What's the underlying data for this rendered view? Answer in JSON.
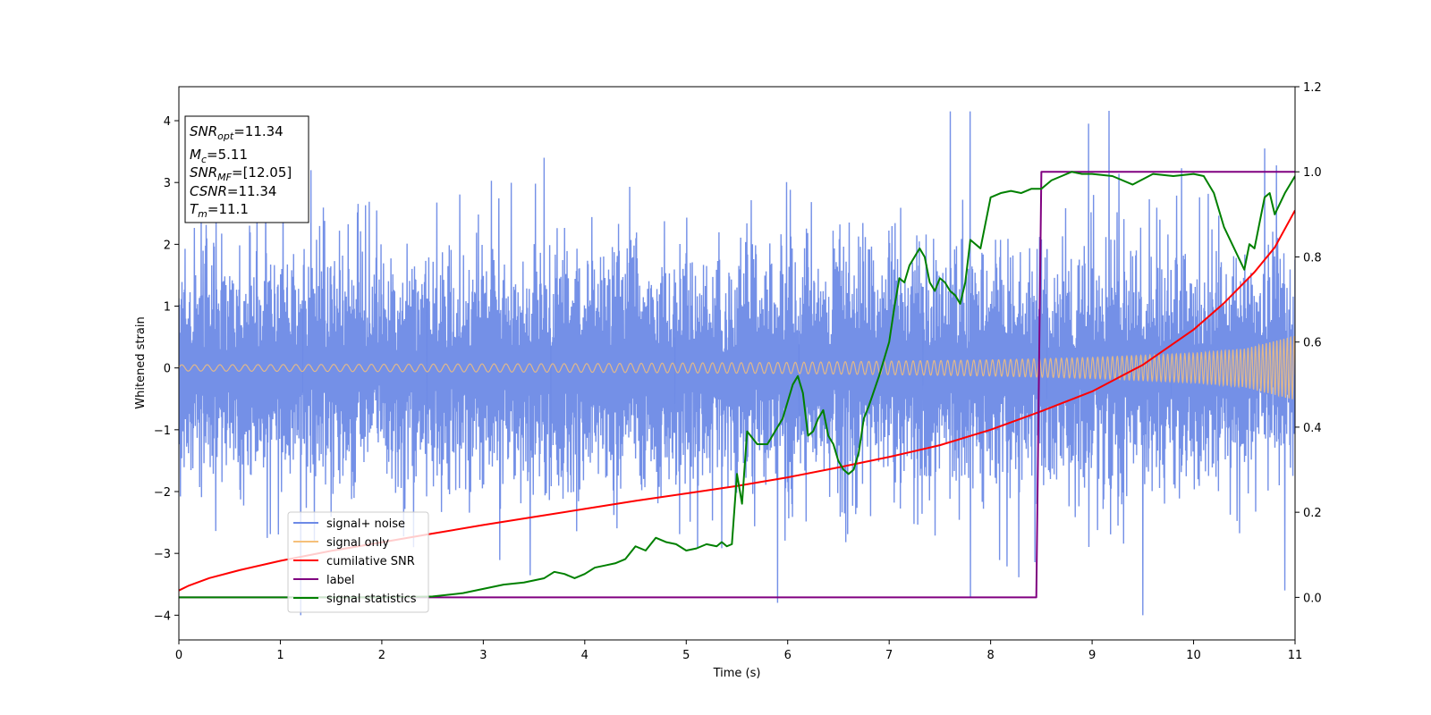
{
  "chart_data": {
    "type": "line",
    "xlabel": "Time (s)",
    "ylabel": "Whitened strain",
    "xlim": [
      0,
      11
    ],
    "ylim": [
      -4.4,
      4.55
    ],
    "y2lim": [
      -0.1,
      1.2
    ],
    "x_ticks": [
      "0",
      "1",
      "2",
      "3",
      "4",
      "5",
      "6",
      "7",
      "8",
      "9",
      "10",
      "11"
    ],
    "y_ticks": [
      "4",
      "3",
      "2",
      "1",
      "0",
      "−1",
      "−2",
      "−3",
      "−4"
    ],
    "y2_ticks": [
      "1.2",
      "1.0",
      "0.8",
      "0.6",
      "0.4",
      "0.2",
      "0.0"
    ],
    "annotation": {
      "lines": [
        {
          "base": "SNR",
          "sub": "opt",
          "value": "=11.34"
        },
        {
          "base": "M",
          "sub": "c",
          "value": "=5.11"
        },
        {
          "base": "SNR",
          "sub": "MF",
          "value": "=[12.05]"
        },
        {
          "base": "CSNR",
          "sub": "",
          "value": "=11.34"
        },
        {
          "base": "T",
          "sub": "m",
          "value": "=11.1"
        }
      ]
    },
    "legend": {
      "placement": "lower-left",
      "entries": [
        {
          "label": "signal+ noise",
          "color": "#6d8ae6"
        },
        {
          "label": "signal only",
          "color": "#f5c07a"
        },
        {
          "label": "cumilative SNR",
          "color": "#ff0000"
        },
        {
          "label": "label",
          "color": "#800080"
        },
        {
          "label": "signal statistics",
          "color": "#008000"
        }
      ]
    },
    "series": [
      {
        "name": "signal+ noise",
        "axis": "left",
        "color": "#6d8ae6",
        "description": "noisy whitened strain, approx. Gaussian noise sd ~1 across 0-11 s",
        "noise_sd": 1.0,
        "peak_max": [
          [
            7.6,
            4.15
          ],
          [
            7.8,
            4.15
          ],
          [
            10.7,
            3.55
          ],
          [
            1.3,
            3.2
          ],
          [
            3.6,
            3.4
          ]
        ],
        "peak_min": [
          [
            1.2,
            -4.0
          ],
          [
            5.9,
            -3.8
          ],
          [
            9.5,
            -4.0
          ],
          [
            7.8,
            -3.7
          ],
          [
            10.9,
            -3.6
          ]
        ]
      },
      {
        "name": "signal only",
        "axis": "left",
        "color": "#f5c07a",
        "envelope": [
          [
            0,
            0.05
          ],
          [
            2,
            0.06
          ],
          [
            4,
            0.07
          ],
          [
            6,
            0.09
          ],
          [
            8,
            0.13
          ],
          [
            9,
            0.17
          ],
          [
            10,
            0.24
          ],
          [
            10.5,
            0.31
          ],
          [
            11,
            0.52
          ]
        ]
      },
      {
        "name": "cumilative SNR",
        "axis": "left",
        "color": "#ff0000",
        "x": [
          0,
          0.1,
          0.3,
          0.6,
          1,
          1.5,
          2,
          2.5,
          3,
          3.5,
          4,
          4.5,
          5,
          5.5,
          6,
          6.5,
          7,
          7.5,
          8,
          8.5,
          9,
          9.5,
          10,
          10.3,
          10.6,
          10.8,
          11
        ],
        "y": [
          -3.6,
          -3.52,
          -3.4,
          -3.27,
          -3.12,
          -2.96,
          -2.82,
          -2.68,
          -2.54,
          -2.41,
          -2.28,
          -2.15,
          -2.03,
          -1.91,
          -1.77,
          -1.61,
          -1.44,
          -1.25,
          -1.0,
          -0.7,
          -0.38,
          0.05,
          0.62,
          1.05,
          1.55,
          1.95,
          2.55
        ]
      },
      {
        "name": "label",
        "axis": "right",
        "color": "#800080",
        "x": [
          0,
          8.45,
          8.5,
          11
        ],
        "y": [
          0.0,
          0.0,
          1.0,
          1.0
        ]
      },
      {
        "name": "signal statistics",
        "axis": "right",
        "color": "#008000",
        "x": [
          0,
          0.5,
          1,
          1.5,
          2,
          2.5,
          2.8,
          3.0,
          3.2,
          3.4,
          3.5,
          3.6,
          3.7,
          3.8,
          3.9,
          4.0,
          4.1,
          4.2,
          4.3,
          4.4,
          4.5,
          4.6,
          4.7,
          4.8,
          4.9,
          5.0,
          5.1,
          5.2,
          5.3,
          5.35,
          5.4,
          5.45,
          5.5,
          5.55,
          5.6,
          5.7,
          5.8,
          5.9,
          5.95,
          6.0,
          6.05,
          6.1,
          6.15,
          6.2,
          6.25,
          6.3,
          6.35,
          6.4,
          6.45,
          6.5,
          6.55,
          6.6,
          6.65,
          6.7,
          6.75,
          6.8,
          6.9,
          7.0,
          7.05,
          7.1,
          7.15,
          7.2,
          7.3,
          7.35,
          7.4,
          7.45,
          7.5,
          7.55,
          7.6,
          7.65,
          7.7,
          7.75,
          7.8,
          7.9,
          8.0,
          8.1,
          8.2,
          8.3,
          8.4,
          8.5,
          8.6,
          8.7,
          8.8,
          8.9,
          9.0,
          9.2,
          9.4,
          9.6,
          9.8,
          10.0,
          10.1,
          10.2,
          10.3,
          10.4,
          10.5,
          10.55,
          10.6,
          10.7,
          10.75,
          10.8,
          10.9,
          11.0
        ],
        "y": [
          0.0,
          0.0,
          0.0,
          0.0,
          0.0,
          0.002,
          0.01,
          0.02,
          0.03,
          0.035,
          0.04,
          0.045,
          0.06,
          0.055,
          0.045,
          0.055,
          0.07,
          0.075,
          0.08,
          0.09,
          0.12,
          0.11,
          0.14,
          0.13,
          0.125,
          0.11,
          0.115,
          0.125,
          0.12,
          0.13,
          0.12,
          0.125,
          0.29,
          0.22,
          0.39,
          0.36,
          0.36,
          0.4,
          0.42,
          0.46,
          0.5,
          0.52,
          0.48,
          0.38,
          0.39,
          0.42,
          0.44,
          0.38,
          0.36,
          0.32,
          0.3,
          0.29,
          0.3,
          0.34,
          0.42,
          0.45,
          0.52,
          0.6,
          0.68,
          0.75,
          0.74,
          0.78,
          0.82,
          0.8,
          0.74,
          0.72,
          0.75,
          0.74,
          0.72,
          0.71,
          0.69,
          0.74,
          0.84,
          0.82,
          0.94,
          0.95,
          0.955,
          0.95,
          0.96,
          0.96,
          0.98,
          0.99,
          1.0,
          0.995,
          0.995,
          0.99,
          0.97,
          0.995,
          0.99,
          0.995,
          0.99,
          0.95,
          0.87,
          0.82,
          0.77,
          0.83,
          0.82,
          0.94,
          0.95,
          0.9,
          0.95,
          0.99
        ]
      }
    ]
  }
}
